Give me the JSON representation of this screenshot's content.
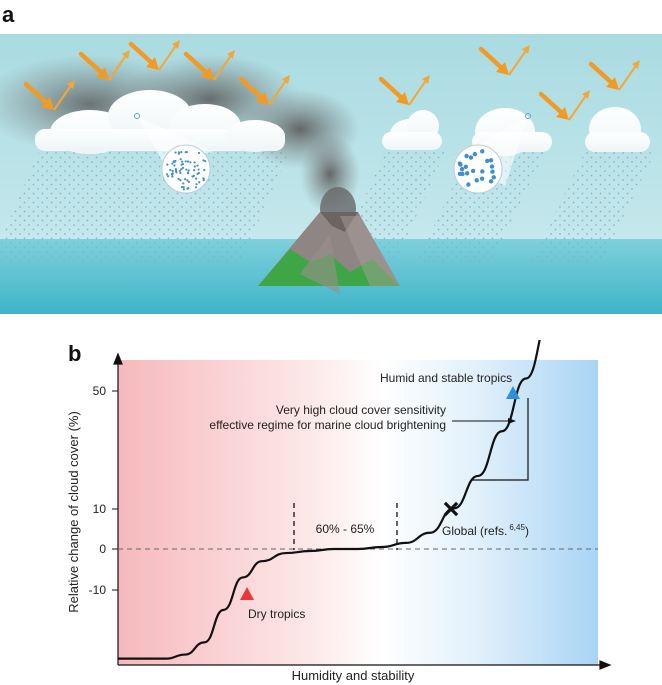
{
  "panel_a": {
    "label": "a"
  },
  "panel_b": {
    "label": "b",
    "xlabel": "Humidity and stability",
    "ylabel": "Relative change of cloud cover (%)",
    "yticks": [
      "50",
      "10",
      "0",
      "-10"
    ],
    "band_label": "60% - 65%",
    "annotations": {
      "humid": "Humid and stable tropics",
      "sensitivity_line1": "Very high cloud cover sensitivity",
      "sensitivity_line2": "effective regime for marine cloud brightening",
      "global": "Global (refs.",
      "global_sup": "6,45",
      "global_close": ")",
      "dry": "Dry tropics"
    },
    "colors": {
      "dry_marker": "#e8383a",
      "humid_marker": "#2d8fe0",
      "global_marker": "#111111",
      "curve": "#111111"
    }
  },
  "chart_data": {
    "type": "line",
    "xlabel": "Humidity and stability",
    "ylabel": "Relative change of cloud cover (%)",
    "yticks": [
      50,
      10,
      0,
      -10
    ],
    "series": [
      {
        "x": [
          0.0,
          0.1,
          0.14,
          0.18,
          0.22,
          0.26,
          0.3,
          0.35,
          0.4,
          0.45,
          0.5,
          0.55,
          0.6,
          0.65,
          0.7,
          0.75,
          0.8,
          0.85,
          0.9,
          0.95
        ],
        "y": [
          -27,
          -27,
          -26,
          -23,
          -15,
          -7,
          -3,
          -1,
          -0.5,
          0,
          0,
          0.5,
          1.5,
          4,
          10,
          18,
          29,
          42,
          57,
          68
        ]
      }
    ],
    "points": [
      {
        "label": "Dry tropics",
        "x": 0.24,
        "y": -11,
        "marker": "triangle"
      },
      {
        "label": "Global",
        "x": 0.7,
        "y": 10,
        "marker": "cross"
      },
      {
        "label": "Humid and stable tropics",
        "x": 0.85,
        "y": 49,
        "marker": "triangle"
      }
    ]
  }
}
